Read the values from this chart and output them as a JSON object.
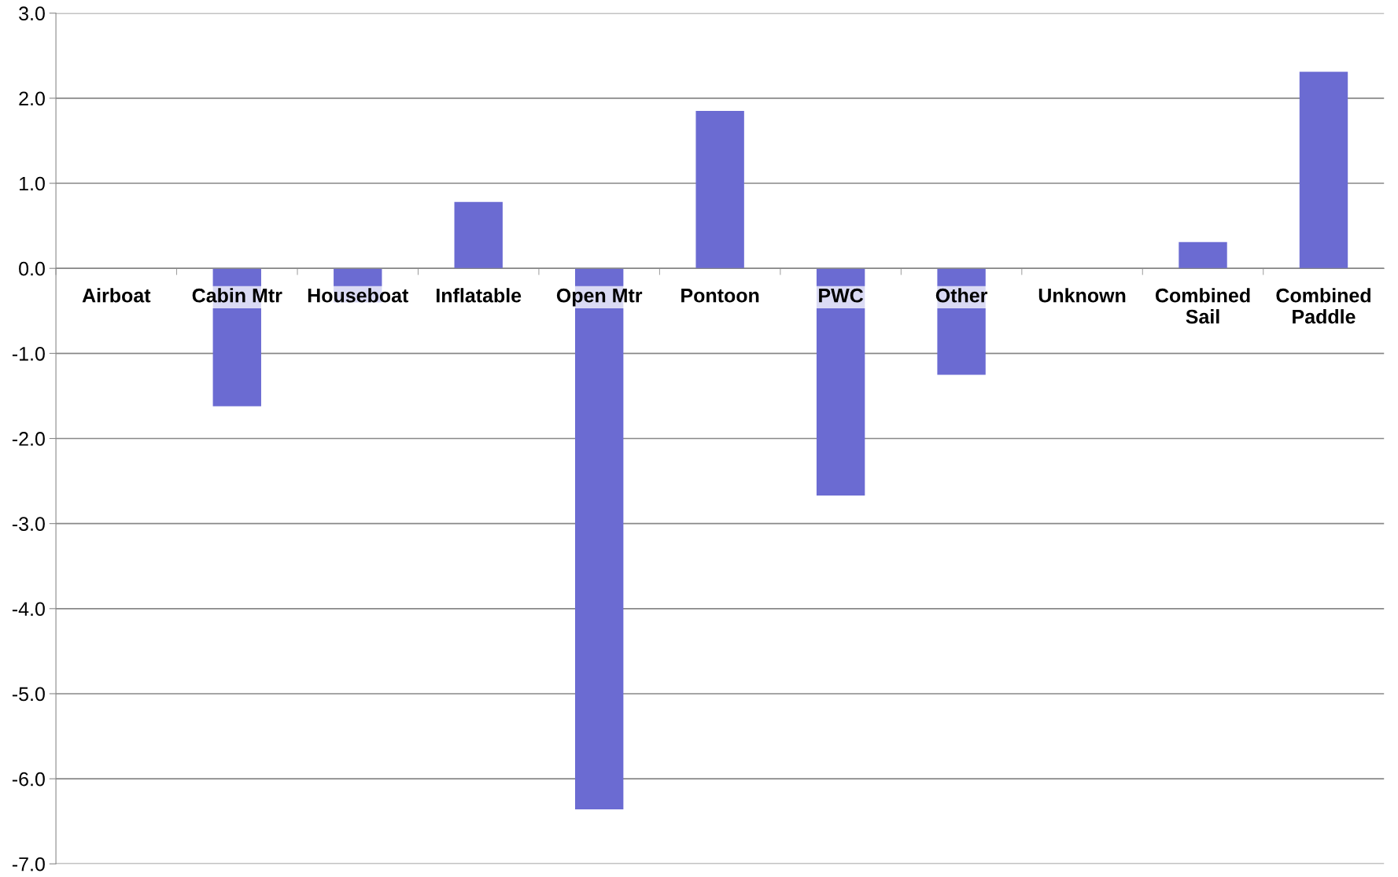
{
  "chart_data": {
    "type": "bar",
    "categories": [
      "Airboat",
      "Cabin Mtr",
      "Houseboat",
      "Inflatable",
      "Open Mtr",
      "Pontoon",
      "PWC",
      "Other",
      "Unknown",
      "Combined Sail",
      "Combined Paddle"
    ],
    "values": [
      0.0,
      -1.62,
      -0.4,
      0.78,
      -6.36,
      1.85,
      -2.67,
      -1.25,
      0.0,
      0.31,
      2.31
    ],
    "color": "#6b6bd2",
    "ylim": [
      -7.0,
      3.0
    ],
    "yticks": [
      {
        "value": -7,
        "label": "-7.0"
      },
      {
        "value": -6,
        "label": "-6.0"
      },
      {
        "value": -5,
        "label": "-5.0"
      },
      {
        "value": -4,
        "label": "-4.0"
      },
      {
        "value": -3,
        "label": "-3.0"
      },
      {
        "value": -2,
        "label": "-2.0"
      },
      {
        "value": -1,
        "label": "-1.0"
      },
      {
        "value": 0,
        "label": "0.0"
      },
      {
        "value": 1,
        "label": "1.0"
      },
      {
        "value": 2,
        "label": "2.0"
      },
      {
        "value": 3,
        "label": "3.0"
      }
    ],
    "grid": "y"
  }
}
